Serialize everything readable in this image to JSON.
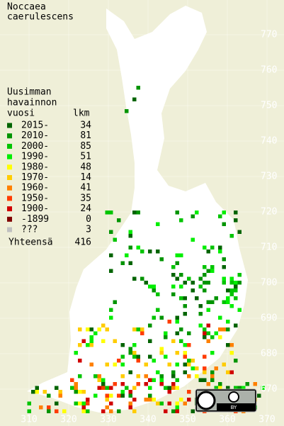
{
  "map": {
    "title": [
      "Noccaea",
      "caerulescens"
    ],
    "legend": {
      "heading": [
        "Uusimman",
        "havainnon",
        "vuosi"
      ],
      "count_heading": "lkm",
      "items": [
        {
          "label": "2015-",
          "count": 34,
          "color": "#006400"
        },
        {
          "label": "2010-",
          "count": 81,
          "color": "#009400"
        },
        {
          "label": "2000-",
          "count": 85,
          "color": "#00c400"
        },
        {
          "label": "1990-",
          "count": 51,
          "color": "#00ee00"
        },
        {
          "label": "1980-",
          "count": 48,
          "color": "#ffff00"
        },
        {
          "label": "1970-",
          "count": 14,
          "color": "#ffcc00"
        },
        {
          "label": "1960-",
          "count": 41,
          "color": "#ff8000"
        },
        {
          "label": "1950-",
          "count": 35,
          "color": "#ff3c00"
        },
        {
          "label": "1900-",
          "count": 24,
          "color": "#d00000"
        },
        {
          "label": "-1899",
          "count": 0,
          "color": "#800000"
        },
        {
          "label": "???",
          "count": 3,
          "color": "#c0c0c0"
        }
      ],
      "total": {
        "label": "Yhteensä",
        "count": 416
      }
    },
    "y_ticks": [
      770,
      760,
      750,
      740,
      730,
      720,
      710,
      700,
      690,
      680,
      670
    ],
    "x_ticks": [
      310,
      320,
      330,
      340,
      350,
      360,
      370
    ],
    "license_badge": "BY"
  }
}
